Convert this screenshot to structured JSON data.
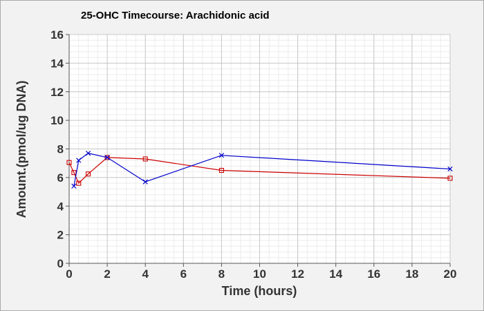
{
  "chart_data": {
    "type": "line",
    "title": "25-OHC Timecourse: Arachidonic acid",
    "xlabel": "Time (hours)",
    "ylabel": "Amount.(pmol/ug DNA)",
    "xlim": [
      0,
      20
    ],
    "ylim": [
      0,
      16
    ],
    "x_ticks": [
      0,
      2,
      4,
      6,
      8,
      10,
      12,
      14,
      16,
      18,
      20
    ],
    "y_ticks": [
      0,
      2,
      4,
      6,
      8,
      10,
      12,
      14,
      16
    ],
    "grid": true,
    "legend": "none",
    "series": [
      {
        "color": "#cc0000",
        "marker": "square",
        "x": [
          0,
          0.25,
          0.5,
          1,
          2,
          4,
          8,
          20
        ],
        "y": [
          7.05,
          6.35,
          5.6,
          6.25,
          7.4,
          7.3,
          6.5,
          5.95
        ]
      },
      {
        "color": "#0000cc",
        "marker": "x",
        "x": [
          0.25,
          0.5,
          1,
          2,
          4,
          8,
          20
        ],
        "y": [
          5.4,
          7.2,
          7.7,
          7.4,
          5.7,
          7.55,
          6.6
        ]
      }
    ]
  }
}
